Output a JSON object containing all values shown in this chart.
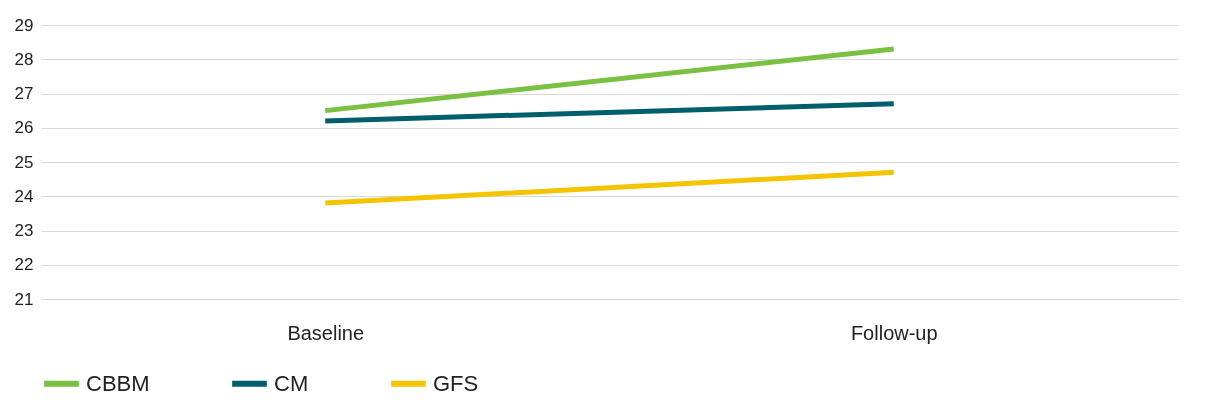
{
  "chart_data": {
    "type": "line",
    "categories": [
      "Baseline",
      "Follow-up"
    ],
    "series": [
      {
        "name": "CBBM",
        "color": "#7ac143",
        "values": [
          26.5,
          28.3
        ]
      },
      {
        "name": "CM",
        "color": "#005f6b",
        "values": [
          26.2,
          26.7
        ]
      },
      {
        "name": "GFS",
        "color": "#f5c400",
        "values": [
          23.8,
          24.7
        ]
      }
    ],
    "ylim": [
      21,
      29
    ],
    "yticks": [
      21,
      22,
      23,
      24,
      25,
      26,
      27,
      28,
      29
    ],
    "grid": "y",
    "legend": "bottom",
    "marker": "none",
    "line_style": "solid"
  }
}
